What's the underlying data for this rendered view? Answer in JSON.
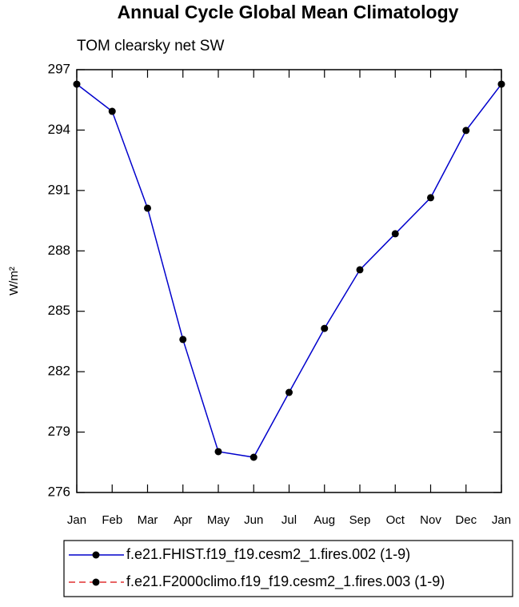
{
  "chart_data": {
    "type": "line",
    "title": "Annual Cycle Global Mean Climatology",
    "subtitle": "TOM clearsky net SW",
    "y_label": "W/m²",
    "categories": [
      "Jan",
      "Feb",
      "Mar",
      "Apr",
      "May",
      "Jun",
      "Jul",
      "Aug",
      "Sep",
      "Oct",
      "Nov",
      "Dec",
      "Jan"
    ],
    "series": [
      {
        "name": "f.e21.FHIST.f19_f19.cesm2_1.fires.002 (1-9)",
        "color": "#0000cc",
        "dash": false,
        "values": [
          296.28,
          294.93,
          290.12,
          283.6,
          278.03,
          277.75,
          280.97,
          284.15,
          287.06,
          288.85,
          290.64,
          293.98,
          296.28
        ]
      },
      {
        "name": "f.e21.F2000climo.f19_f19.cesm2_1.fires.003 (1-9)",
        "color": "#e03030",
        "dash": true,
        "values": [
          null,
          null,
          null,
          null,
          null,
          null,
          null,
          null,
          null,
          null,
          null,
          null,
          null
        ]
      }
    ],
    "ylim": [
      276,
      297
    ],
    "yticks": [
      276,
      279,
      282,
      285,
      288,
      291,
      294,
      297
    ]
  }
}
